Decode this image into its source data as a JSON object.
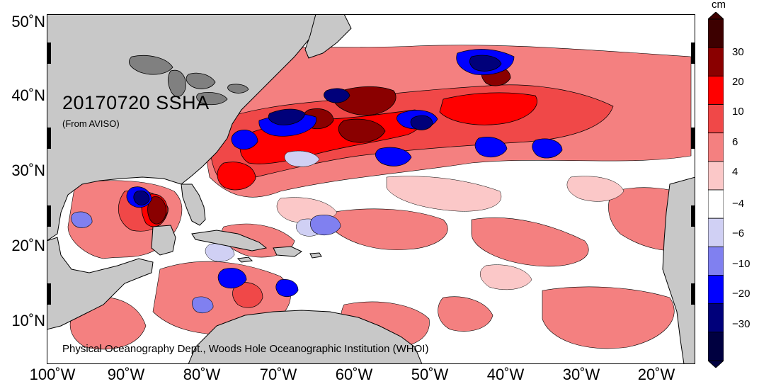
{
  "map": {
    "title": "20170720 SSHA",
    "subtitle": "(From AVISO)",
    "credit": "Physical Oceanography Dept., Woods Hole Oceanographic Institution (WHOI)",
    "lat_labels": [
      "50˚N",
      "40˚N",
      "30˚N",
      "20˚N",
      "10˚N"
    ],
    "lon_labels": [
      "100˚W",
      "90˚W",
      "80˚W",
      "70˚W",
      "60˚W",
      "50˚W",
      "40˚W",
      "30˚W",
      "20˚W"
    ],
    "extent": {
      "lon_min": -100,
      "lon_max": -15,
      "lat_min": 5,
      "lat_max": 50
    }
  },
  "colorbar": {
    "unit": "cm",
    "tick_labels": [
      "30",
      "20",
      "10",
      "6",
      "4",
      "−4",
      "−6",
      "−10",
      "−20",
      "−30"
    ],
    "colors": [
      "#3d0000",
      "#8a0000",
      "#ff0000",
      "#f04848",
      "#f48080",
      "#fbc8c8",
      "#ffffff",
      "#d0d0f4",
      "#8080f0",
      "#0000ff",
      "#00007a",
      "#000040"
    ],
    "land_color": "#c8c8c8",
    "ocean_base": "#ffffff"
  }
}
